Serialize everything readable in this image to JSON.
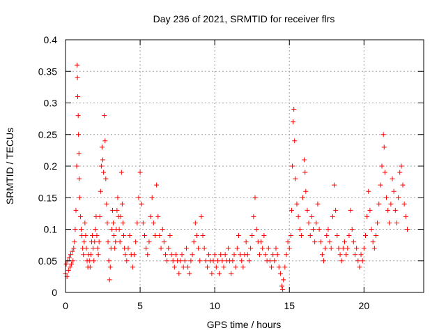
{
  "chart_data": {
    "type": "scatter",
    "title": "Day 236 of 2021, SRMTID for receiver flrs",
    "xlabel": "GPS time / hours",
    "ylabel": "SRMTID / TECUs",
    "xlim": [
      0,
      24
    ],
    "ylim": [
      0,
      0.4
    ],
    "xticks": [
      0,
      5,
      10,
      15,
      20
    ],
    "yticks": [
      0,
      0.05,
      0.1,
      0.15,
      0.2,
      0.25,
      0.3,
      0.35,
      0.4
    ],
    "xtick_labels": [
      "0",
      "5",
      "10",
      "15",
      "20"
    ],
    "ytick_labels": [
      "0",
      "0.05",
      "0.1",
      "0.15",
      "0.2",
      "0.25",
      "0.3",
      "0.35",
      "0.4"
    ],
    "grid": true,
    "marker": "+",
    "color": "#ff0000",
    "series": [
      {
        "name": "",
        "points": [
          [
            0.0,
            0.03
          ],
          [
            0.05,
            0.045
          ],
          [
            0.1,
            0.025
          ],
          [
            0.15,
            0.05
          ],
          [
            0.2,
            0.035
          ],
          [
            0.25,
            0.055
          ],
          [
            0.3,
            0.04
          ],
          [
            0.35,
            0.06
          ],
          [
            0.4,
            0.045
          ],
          [
            0.45,
            0.065
          ],
          [
            0.5,
            0.05
          ],
          [
            0.55,
            0.07
          ],
          [
            0.6,
            0.08
          ],
          [
            0.65,
            0.1
          ],
          [
            0.7,
            0.13
          ],
          [
            0.75,
            0.2
          ],
          [
            0.78,
            0.36
          ],
          [
            0.8,
            0.34
          ],
          [
            0.82,
            0.31
          ],
          [
            0.85,
            0.28
          ],
          [
            0.87,
            0.25
          ],
          [
            0.9,
            0.22
          ],
          [
            0.92,
            0.18
          ],
          [
            0.95,
            0.15
          ],
          [
            1.0,
            0.12
          ],
          [
            1.05,
            0.1
          ],
          [
            1.1,
            0.09
          ],
          [
            1.15,
            0.07
          ],
          [
            1.2,
            0.06
          ],
          [
            1.25,
            0.08
          ],
          [
            1.3,
            0.11
          ],
          [
            1.35,
            0.09
          ],
          [
            1.4,
            0.07
          ],
          [
            1.45,
            0.05
          ],
          [
            1.5,
            0.04
          ],
          [
            1.55,
            0.06
          ],
          [
            1.6,
            0.05
          ],
          [
            1.65,
            0.04
          ],
          [
            1.7,
            0.06
          ],
          [
            1.75,
            0.08
          ],
          [
            1.8,
            0.09
          ],
          [
            1.85,
            0.07
          ],
          [
            1.9,
            0.05
          ],
          [
            1.95,
            0.08
          ],
          [
            2.0,
            0.1
          ],
          [
            2.05,
            0.12
          ],
          [
            2.1,
            0.09
          ],
          [
            2.15,
            0.07
          ],
          [
            2.2,
            0.06
          ],
          [
            2.25,
            0.08
          ],
          [
            2.3,
            0.12
          ],
          [
            2.35,
            0.16
          ],
          [
            2.4,
            0.2
          ],
          [
            2.45,
            0.23
          ],
          [
            2.5,
            0.21
          ],
          [
            2.55,
            0.19
          ],
          [
            2.6,
            0.28
          ],
          [
            2.65,
            0.24
          ],
          [
            2.7,
            0.18
          ],
          [
            2.75,
            0.14
          ],
          [
            2.8,
            0.11
          ],
          [
            2.85,
            0.08
          ],
          [
            2.9,
            0.05
          ],
          [
            2.95,
            0.02
          ],
          [
            3.0,
            0.04
          ],
          [
            3.05,
            0.07
          ],
          [
            3.1,
            0.1
          ],
          [
            3.15,
            0.13
          ],
          [
            3.2,
            0.11
          ],
          [
            3.25,
            0.09
          ],
          [
            3.3,
            0.07
          ],
          [
            3.35,
            0.08
          ],
          [
            3.4,
            0.1
          ],
          [
            3.45,
            0.13
          ],
          [
            3.5,
            0.15
          ],
          [
            3.55,
            0.12
          ],
          [
            3.6,
            0.1
          ],
          [
            3.65,
            0.08
          ],
          [
            3.7,
            0.12
          ],
          [
            3.75,
            0.19
          ],
          [
            3.8,
            0.14
          ],
          [
            3.85,
            0.11
          ],
          [
            3.9,
            0.09
          ],
          [
            3.95,
            0.07
          ],
          [
            4.0,
            0.06
          ],
          [
            4.1,
            0.05
          ],
          [
            4.2,
            0.07
          ],
          [
            4.3,
            0.09
          ],
          [
            4.4,
            0.06
          ],
          [
            4.5,
            0.04
          ],
          [
            4.6,
            0.06
          ],
          [
            4.7,
            0.08
          ],
          [
            4.8,
            0.11
          ],
          [
            4.9,
            0.15
          ],
          [
            5.0,
            0.19
          ],
          [
            5.1,
            0.14
          ],
          [
            5.2,
            0.11
          ],
          [
            5.3,
            0.09
          ],
          [
            5.4,
            0.07
          ],
          [
            5.5,
            0.06
          ],
          [
            5.6,
            0.08
          ],
          [
            5.7,
            0.12
          ],
          [
            5.8,
            0.15
          ],
          [
            5.9,
            0.11
          ],
          [
            6.0,
            0.09
          ],
          [
            6.1,
            0.17
          ],
          [
            6.2,
            0.12
          ],
          [
            6.3,
            0.09
          ],
          [
            6.4,
            0.07
          ],
          [
            6.5,
            0.1
          ],
          [
            6.6,
            0.08
          ],
          [
            6.7,
            0.06
          ],
          [
            6.8,
            0.05
          ],
          [
            6.9,
            0.07
          ],
          [
            7.0,
            0.09
          ],
          [
            7.1,
            0.06
          ],
          [
            7.2,
            0.05
          ],
          [
            7.3,
            0.04
          ],
          [
            7.4,
            0.06
          ],
          [
            7.5,
            0.05
          ],
          [
            7.6,
            0.03
          ],
          [
            7.7,
            0.05
          ],
          [
            7.8,
            0.06
          ],
          [
            7.9,
            0.04
          ],
          [
            8.0,
            0.05
          ],
          [
            8.1,
            0.07
          ],
          [
            8.2,
            0.04
          ],
          [
            8.3,
            0.03
          ],
          [
            8.4,
            0.05
          ],
          [
            8.5,
            0.06
          ],
          [
            8.6,
            0.08
          ],
          [
            8.7,
            0.11
          ],
          [
            8.8,
            0.09
          ],
          [
            8.9,
            0.07
          ],
          [
            9.0,
            0.05
          ],
          [
            9.1,
            0.12
          ],
          [
            9.2,
            0.09
          ],
          [
            9.3,
            0.07
          ],
          [
            9.4,
            0.05
          ],
          [
            9.5,
            0.04
          ],
          [
            9.6,
            0.06
          ],
          [
            9.7,
            0.05
          ],
          [
            9.8,
            0.03
          ],
          [
            9.9,
            0.05
          ],
          [
            10.0,
            0.06
          ],
          [
            10.1,
            0.04
          ],
          [
            10.2,
            0.05
          ],
          [
            10.3,
            0.03
          ],
          [
            10.4,
            0.06
          ],
          [
            10.5,
            0.05
          ],
          [
            10.6,
            0.04
          ],
          [
            10.7,
            0.06
          ],
          [
            10.8,
            0.05
          ],
          [
            10.9,
            0.07
          ],
          [
            11.0,
            0.05
          ],
          [
            11.1,
            0.03
          ],
          [
            11.2,
            0.05
          ],
          [
            11.3,
            0.06
          ],
          [
            11.4,
            0.04
          ],
          [
            11.5,
            0.07
          ],
          [
            11.6,
            0.09
          ],
          [
            11.7,
            0.06
          ],
          [
            11.8,
            0.05
          ],
          [
            11.9,
            0.04
          ],
          [
            12.0,
            0.06
          ],
          [
            12.1,
            0.08
          ],
          [
            12.2,
            0.06
          ],
          [
            12.3,
            0.05
          ],
          [
            12.4,
            0.07
          ],
          [
            12.5,
            0.09
          ],
          [
            12.6,
            0.12
          ],
          [
            12.7,
            0.15
          ],
          [
            12.8,
            0.1
          ],
          [
            12.9,
            0.08
          ],
          [
            13.0,
            0.06
          ],
          [
            13.1,
            0.08
          ],
          [
            13.2,
            0.07
          ],
          [
            13.3,
            0.09
          ],
          [
            13.4,
            0.06
          ],
          [
            13.5,
            0.05
          ],
          [
            13.6,
            0.07
          ],
          [
            13.7,
            0.05
          ],
          [
            13.8,
            0.04
          ],
          [
            13.9,
            0.06
          ],
          [
            14.0,
            0.05
          ],
          [
            14.1,
            0.07
          ],
          [
            14.2,
            0.06
          ],
          [
            14.3,
            0.04
          ],
          [
            14.4,
            0.03
          ],
          [
            14.5,
            0.01
          ],
          [
            14.55,
            0.005
          ],
          [
            14.6,
            0.02
          ],
          [
            14.7,
            0.04
          ],
          [
            14.8,
            0.06
          ],
          [
            14.9,
            0.08
          ],
          [
            15.0,
            0.07
          ],
          [
            15.1,
            0.09
          ],
          [
            15.15,
            0.13
          ],
          [
            15.2,
            0.2
          ],
          [
            15.25,
            0.27
          ],
          [
            15.3,
            0.29
          ],
          [
            15.35,
            0.24
          ],
          [
            15.4,
            0.18
          ],
          [
            15.5,
            0.14
          ],
          [
            15.6,
            0.12
          ],
          [
            15.7,
            0.1
          ],
          [
            15.8,
            0.09
          ],
          [
            15.9,
            0.15
          ],
          [
            16.0,
            0.21
          ],
          [
            16.05,
            0.19
          ],
          [
            16.1,
            0.16
          ],
          [
            16.2,
            0.13
          ],
          [
            16.3,
            0.11
          ],
          [
            16.4,
            0.09
          ],
          [
            16.5,
            0.12
          ],
          [
            16.6,
            0.1
          ],
          [
            16.7,
            0.08
          ],
          [
            16.8,
            0.11
          ],
          [
            16.9,
            0.14
          ],
          [
            17.0,
            0.1
          ],
          [
            17.1,
            0.08
          ],
          [
            17.2,
            0.06
          ],
          [
            17.3,
            0.05
          ],
          [
            17.4,
            0.07
          ],
          [
            17.5,
            0.09
          ],
          [
            17.6,
            0.1
          ],
          [
            17.7,
            0.08
          ],
          [
            17.8,
            0.07
          ],
          [
            17.9,
            0.12
          ],
          [
            18.0,
            0.17
          ],
          [
            18.1,
            0.13
          ],
          [
            18.2,
            0.09
          ],
          [
            18.3,
            0.07
          ],
          [
            18.4,
            0.06
          ],
          [
            18.5,
            0.05
          ],
          [
            18.6,
            0.07
          ],
          [
            18.7,
            0.08
          ],
          [
            18.8,
            0.06
          ],
          [
            18.9,
            0.07
          ],
          [
            19.0,
            0.09
          ],
          [
            19.1,
            0.13
          ],
          [
            19.2,
            0.1
          ],
          [
            19.3,
            0.08
          ],
          [
            19.4,
            0.06
          ],
          [
            19.5,
            0.07
          ],
          [
            19.6,
            0.05
          ],
          [
            19.7,
            0.04
          ],
          [
            19.8,
            0.06
          ],
          [
            19.9,
            0.05
          ],
          [
            20.0,
            0.07
          ],
          [
            20.1,
            0.09
          ],
          [
            20.2,
            0.12
          ],
          [
            20.3,
            0.16
          ],
          [
            20.4,
            0.13
          ],
          [
            20.5,
            0.1
          ],
          [
            20.6,
            0.08
          ],
          [
            20.7,
            0.07
          ],
          [
            20.8,
            0.09
          ],
          [
            20.9,
            0.11
          ],
          [
            21.0,
            0.14
          ],
          [
            21.1,
            0.17
          ],
          [
            21.2,
            0.2
          ],
          [
            21.3,
            0.25
          ],
          [
            21.35,
            0.23
          ],
          [
            21.4,
            0.19
          ],
          [
            21.5,
            0.15
          ],
          [
            21.6,
            0.13
          ],
          [
            21.7,
            0.11
          ],
          [
            21.8,
            0.14
          ],
          [
            21.9,
            0.18
          ],
          [
            22.0,
            0.16
          ],
          [
            22.1,
            0.13
          ],
          [
            22.2,
            0.11
          ],
          [
            22.3,
            0.15
          ],
          [
            22.4,
            0.19
          ],
          [
            22.5,
            0.2
          ],
          [
            22.6,
            0.17
          ],
          [
            22.7,
            0.14
          ],
          [
            22.8,
            0.12
          ],
          [
            22.9,
            0.1
          ]
        ]
      }
    ]
  }
}
